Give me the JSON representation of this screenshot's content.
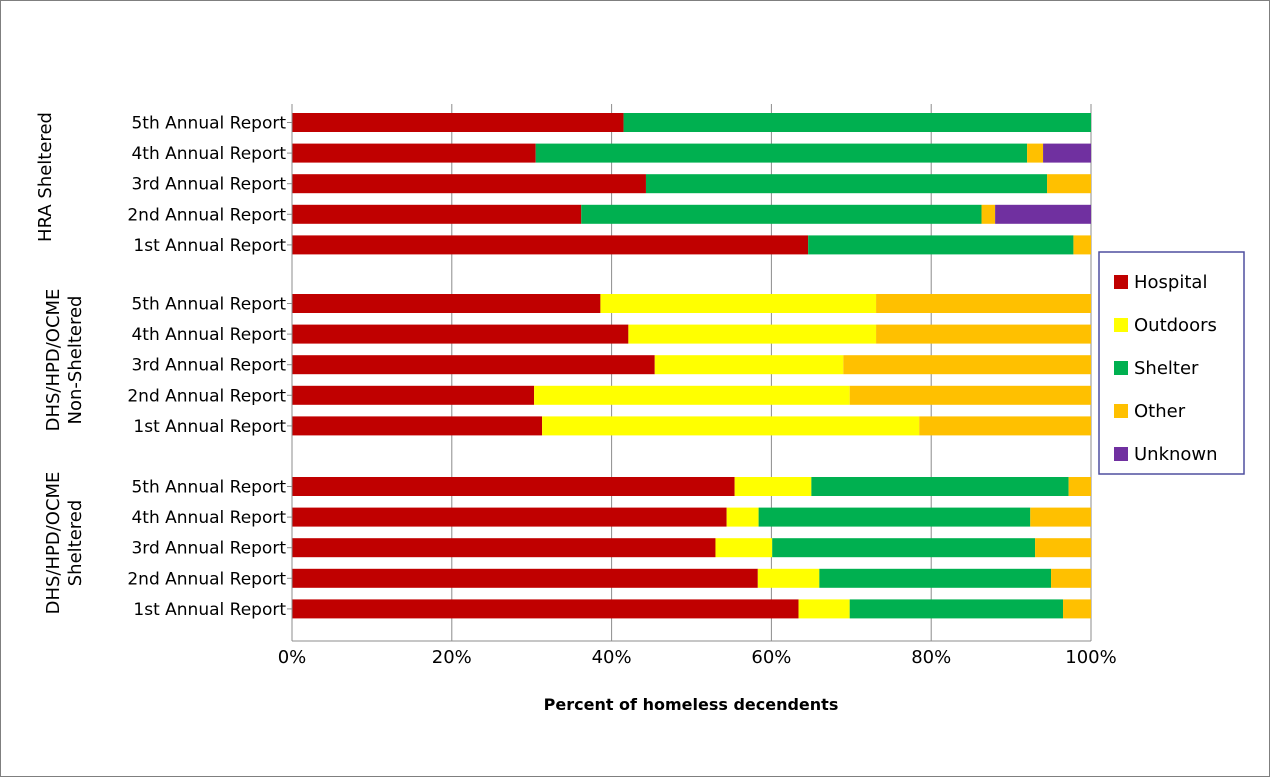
{
  "chart_data": {
    "type": "bar",
    "orientation": "horizontal",
    "stacked": "percent",
    "xlabel": "Percent of homeless decendents",
    "xlim": [
      0,
      100
    ],
    "x_ticks": [
      "0%",
      "20%",
      "40%",
      "60%",
      "80%",
      "100%"
    ],
    "grid": true,
    "legend_position": "right",
    "series_names": [
      "Hospital",
      "Outdoors",
      "Shelter",
      "Other",
      "Unknown"
    ],
    "colors": {
      "Hospital": "#c00000",
      "Outdoors": "#ffff00",
      "Shelter": "#00b050",
      "Other": "#ffc000",
      "Unknown": "#7030a0"
    },
    "groups": [
      {
        "label": [
          "HRA Sheltered"
        ],
        "bars": [
          {
            "category": "5th Annual Report",
            "Hospital": 41.5,
            "Outdoors": 0,
            "Shelter": 58.5,
            "Other": 0,
            "Unknown": 0
          },
          {
            "category": "4th Annual Report",
            "Hospital": 30.5,
            "Outdoors": 0,
            "Shelter": 61.5,
            "Other": 2,
            "Unknown": 6
          },
          {
            "category": "3rd Annual Report",
            "Hospital": 44.3,
            "Outdoors": 0,
            "Shelter": 50.2,
            "Other": 5.5,
            "Unknown": 0
          },
          {
            "category": "2nd Annual Report",
            "Hospital": 36.2,
            "Outdoors": 0,
            "Shelter": 50.1,
            "Other": 1.7,
            "Unknown": 12
          },
          {
            "category": "1st Annual Report",
            "Hospital": 64.6,
            "Outdoors": 0,
            "Shelter": 33.2,
            "Other": 2.2,
            "Unknown": 0
          }
        ]
      },
      {
        "label": [
          "DHS/HPD/OCME",
          "Non-Sheltered"
        ],
        "bars": [
          {
            "category": "5th Annual Report",
            "Hospital": 38.6,
            "Outdoors": 34.5,
            "Shelter": 0,
            "Other": 26.9,
            "Unknown": 0
          },
          {
            "category": "4th Annual Report",
            "Hospital": 42.1,
            "Outdoors": 31.0,
            "Shelter": 0,
            "Other": 26.9,
            "Unknown": 0
          },
          {
            "category": "3rd Annual Report",
            "Hospital": 45.4,
            "Outdoors": 23.6,
            "Shelter": 0,
            "Other": 31.0,
            "Unknown": 0
          },
          {
            "category": "2nd Annual Report",
            "Hospital": 30.3,
            "Outdoors": 39.5,
            "Shelter": 0,
            "Other": 30.2,
            "Unknown": 0
          },
          {
            "category": "1st Annual Report",
            "Hospital": 31.3,
            "Outdoors": 47.2,
            "Shelter": 0,
            "Other": 21.5,
            "Unknown": 0
          }
        ]
      },
      {
        "label": [
          "DHS/HPD/OCME",
          "Sheltered"
        ],
        "bars": [
          {
            "category": "5th Annual Report",
            "Hospital": 55.4,
            "Outdoors": 9.6,
            "Shelter": 32.2,
            "Other": 2.8,
            "Unknown": 0
          },
          {
            "category": "4th Annual Report",
            "Hospital": 54.4,
            "Outdoors": 4.0,
            "Shelter": 34.0,
            "Other": 7.6,
            "Unknown": 0
          },
          {
            "category": "3rd Annual Report",
            "Hospital": 53.0,
            "Outdoors": 7.1,
            "Shelter": 32.9,
            "Other": 7.0,
            "Unknown": 0
          },
          {
            "category": "2nd Annual Report",
            "Hospital": 58.3,
            "Outdoors": 7.7,
            "Shelter": 29.0,
            "Other": 5.0,
            "Unknown": 0
          },
          {
            "category": "1st Annual Report",
            "Hospital": 63.4,
            "Outdoors": 6.4,
            "Shelter": 26.7,
            "Other": 3.5,
            "Unknown": 0
          }
        ]
      }
    ]
  }
}
